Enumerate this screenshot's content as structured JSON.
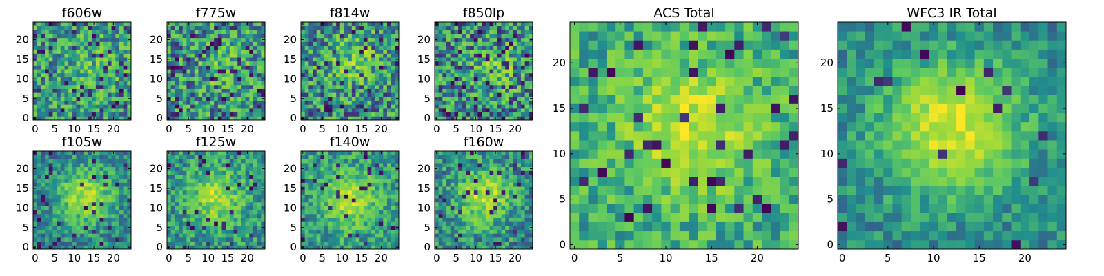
{
  "figure": {
    "description_type": "grid of heatmap panels"
  },
  "colormap": {
    "name": "viridis",
    "stops": [
      "#440154",
      "#3b528b",
      "#21908d",
      "#5dc963",
      "#a0da39",
      "#fde725"
    ]
  },
  "chart_data": [
    {
      "type": "heatmap",
      "title": "f606w",
      "x_ticks": [
        "0",
        "5",
        "10",
        "15",
        "20"
      ],
      "y_ticks": [
        "0",
        "5",
        "10",
        "15",
        "20"
      ],
      "xlim": [
        0,
        25
      ],
      "ylim": [
        0,
        25
      ],
      "grid_size": 25,
      "seed": 11,
      "center": [
        15,
        14
      ],
      "peak_strength": 0.12,
      "noise": 0.55,
      "base": 0.45,
      "dark_spots": 0.08
    },
    {
      "type": "heatmap",
      "title": "f775w",
      "x_ticks": [
        "0",
        "5",
        "10",
        "15",
        "20"
      ],
      "y_ticks": [
        "0",
        "5",
        "10",
        "15",
        "20"
      ],
      "xlim": [
        0,
        25
      ],
      "ylim": [
        0,
        25
      ],
      "grid_size": 25,
      "seed": 23,
      "center": [
        14,
        13
      ],
      "peak_strength": 0.14,
      "noise": 0.6,
      "base": 0.42,
      "dark_spots": 0.09
    },
    {
      "type": "heatmap",
      "title": "f814w",
      "x_ticks": [
        "0",
        "5",
        "10",
        "15",
        "20"
      ],
      "y_ticks": [
        "0",
        "5",
        "10",
        "15",
        "20"
      ],
      "xlim": [
        0,
        25
      ],
      "ylim": [
        0,
        25
      ],
      "grid_size": 25,
      "seed": 37,
      "center": [
        13,
        15
      ],
      "peak_strength": 0.25,
      "noise": 0.6,
      "base": 0.4,
      "dark_spots": 0.08
    },
    {
      "type": "heatmap",
      "title": "f850lp",
      "x_ticks": [
        "0",
        "5",
        "10",
        "15",
        "20"
      ],
      "y_ticks": [
        "0",
        "5",
        "10",
        "15",
        "20"
      ],
      "xlim": [
        0,
        25
      ],
      "ylim": [
        0,
        25
      ],
      "grid_size": 25,
      "seed": 41,
      "center": [
        15,
        13
      ],
      "peak_strength": 0.2,
      "noise": 0.62,
      "base": 0.4,
      "dark_spots": 0.1
    },
    {
      "type": "heatmap",
      "title": "f105w",
      "x_ticks": [
        "0",
        "5",
        "10",
        "15",
        "20"
      ],
      "y_ticks": [
        "0",
        "5",
        "10",
        "15",
        "20"
      ],
      "xlim": [
        0,
        25
      ],
      "ylim": [
        0,
        25
      ],
      "grid_size": 25,
      "seed": 53,
      "center": [
        13,
        13
      ],
      "peak_strength": 0.45,
      "noise": 0.35,
      "base": 0.35,
      "dark_spots": 0.05
    },
    {
      "type": "heatmap",
      "title": "f125w",
      "x_ticks": [
        "0",
        "5",
        "10",
        "15",
        "20"
      ],
      "y_ticks": [
        "0",
        "5",
        "10",
        "15",
        "20"
      ],
      "xlim": [
        0,
        25
      ],
      "ylim": [
        0,
        25
      ],
      "grid_size": 25,
      "seed": 61,
      "center": [
        12,
        13
      ],
      "peak_strength": 0.4,
      "noise": 0.4,
      "base": 0.4,
      "dark_spots": 0.04
    },
    {
      "type": "heatmap",
      "title": "f140w",
      "x_ticks": [
        "0",
        "5",
        "10",
        "15",
        "20"
      ],
      "y_ticks": [
        "0",
        "5",
        "10",
        "15",
        "20"
      ],
      "xlim": [
        0,
        25
      ],
      "ylim": [
        0,
        25
      ],
      "grid_size": 25,
      "seed": 73,
      "center": [
        12,
        12
      ],
      "peak_strength": 0.4,
      "noise": 0.38,
      "base": 0.42,
      "dark_spots": 0.04
    },
    {
      "type": "heatmap",
      "title": "f160w",
      "x_ticks": [
        "0",
        "5",
        "10",
        "15",
        "20"
      ],
      "y_ticks": [
        "0",
        "5",
        "10",
        "15",
        "20"
      ],
      "xlim": [
        0,
        25
      ],
      "ylim": [
        0,
        25
      ],
      "grid_size": 25,
      "seed": 89,
      "center": [
        12,
        13
      ],
      "peak_strength": 0.45,
      "noise": 0.42,
      "base": 0.38,
      "dark_spots": 0.06
    },
    {
      "type": "heatmap",
      "title": "ACS Total",
      "x_ticks": [
        "0",
        "5",
        "10",
        "15",
        "20"
      ],
      "y_ticks": [
        "0",
        "5",
        "10",
        "15",
        "20"
      ],
      "xlim": [
        0,
        25
      ],
      "ylim": [
        0,
        25
      ],
      "grid_size": 25,
      "seed": 97,
      "center": [
        13,
        13
      ],
      "peak_strength": 0.35,
      "noise": 0.4,
      "base": 0.52,
      "dark_spots": 0.05
    },
    {
      "type": "heatmap",
      "title": "WFC3 IR Total",
      "x_ticks": [
        "0",
        "5",
        "10",
        "15",
        "20"
      ],
      "y_ticks": [
        "0",
        "5",
        "10",
        "15",
        "20"
      ],
      "xlim": [
        0,
        25
      ],
      "ylim": [
        0,
        25
      ],
      "grid_size": 25,
      "seed": 103,
      "center": [
        12,
        13
      ],
      "peak_strength": 0.55,
      "noise": 0.28,
      "base": 0.38,
      "dark_spots": 0.02
    }
  ]
}
